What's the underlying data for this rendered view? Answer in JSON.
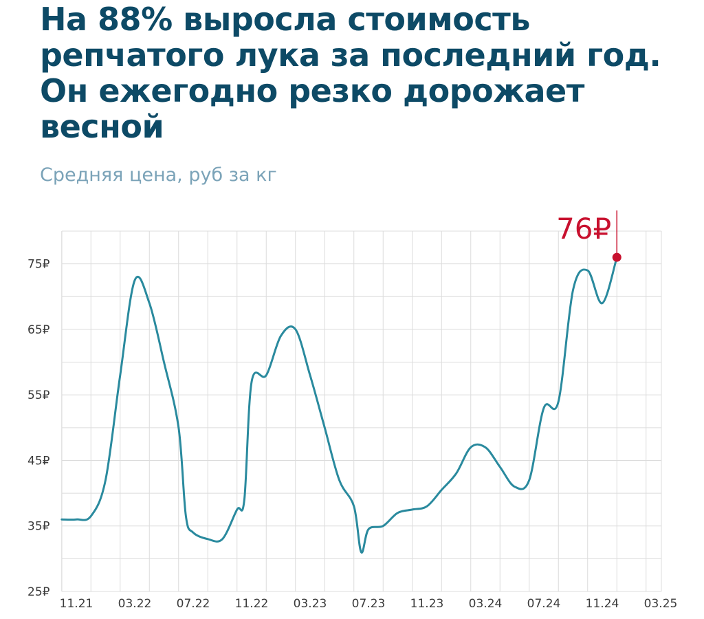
{
  "header": {
    "title": "На 88% выросла стоимость репчатого лука за последний год. Он ежегодно резко дорожает весной",
    "subtitle": "Средняя цена, руб за кг"
  },
  "colors": {
    "title": "#0d4a66",
    "subtitle": "#7ba3b8",
    "line": "#2a8a9e",
    "highlight": "#c8102e",
    "grid": "#dcdcdc"
  },
  "chart_data": {
    "type": "line",
    "title": "",
    "xlabel": "",
    "ylabel": "",
    "ylim": [
      25,
      80
    ],
    "xlim": [
      0,
      41
    ],
    "grid": true,
    "y_ticks": [
      25,
      35,
      45,
      55,
      65,
      75
    ],
    "y_tick_labels": [
      "25₽",
      "35₽",
      "45₽",
      "55₽",
      "65₽",
      "75₽"
    ],
    "x_ticks": [
      0,
      4,
      8,
      12,
      16,
      20,
      24,
      28,
      32,
      36,
      40
    ],
    "x_tick_labels": [
      "11.21",
      "03.22",
      "07.22",
      "11.22",
      "03.23",
      "07.23",
      "11.23",
      "03.24",
      "07.24",
      "11.24",
      "03.25"
    ],
    "series": [
      {
        "points": [
          [
            -1,
            36
          ],
          [
            0,
            36
          ],
          [
            1,
            36.5
          ],
          [
            2,
            42
          ],
          [
            3,
            58
          ],
          [
            4,
            72.5
          ],
          [
            5,
            69
          ],
          [
            6,
            60
          ],
          [
            7,
            50
          ],
          [
            7.5,
            36.5
          ],
          [
            8,
            34
          ],
          [
            9,
            33
          ],
          [
            10,
            33
          ],
          [
            11,
            37.5
          ],
          [
            11.5,
            39
          ],
          [
            12,
            57
          ],
          [
            13,
            58
          ],
          [
            14,
            64
          ],
          [
            15,
            65
          ],
          [
            16,
            58
          ],
          [
            17,
            50
          ],
          [
            18,
            42
          ],
          [
            19,
            38
          ],
          [
            19.5,
            31
          ],
          [
            20,
            34.5
          ],
          [
            21,
            35
          ],
          [
            22,
            37
          ],
          [
            23,
            37.5
          ],
          [
            24,
            38
          ],
          [
            25,
            40.5
          ],
          [
            26,
            43
          ],
          [
            27,
            47
          ],
          [
            28,
            47
          ],
          [
            29,
            44
          ],
          [
            30,
            41
          ],
          [
            31,
            42
          ],
          [
            32,
            53
          ],
          [
            33,
            54
          ],
          [
            34,
            71
          ],
          [
            35,
            74
          ],
          [
            36,
            69
          ],
          [
            37,
            76
          ]
        ]
      }
    ],
    "annotation": {
      "text": "76₽",
      "x": 37,
      "y": 76
    }
  }
}
